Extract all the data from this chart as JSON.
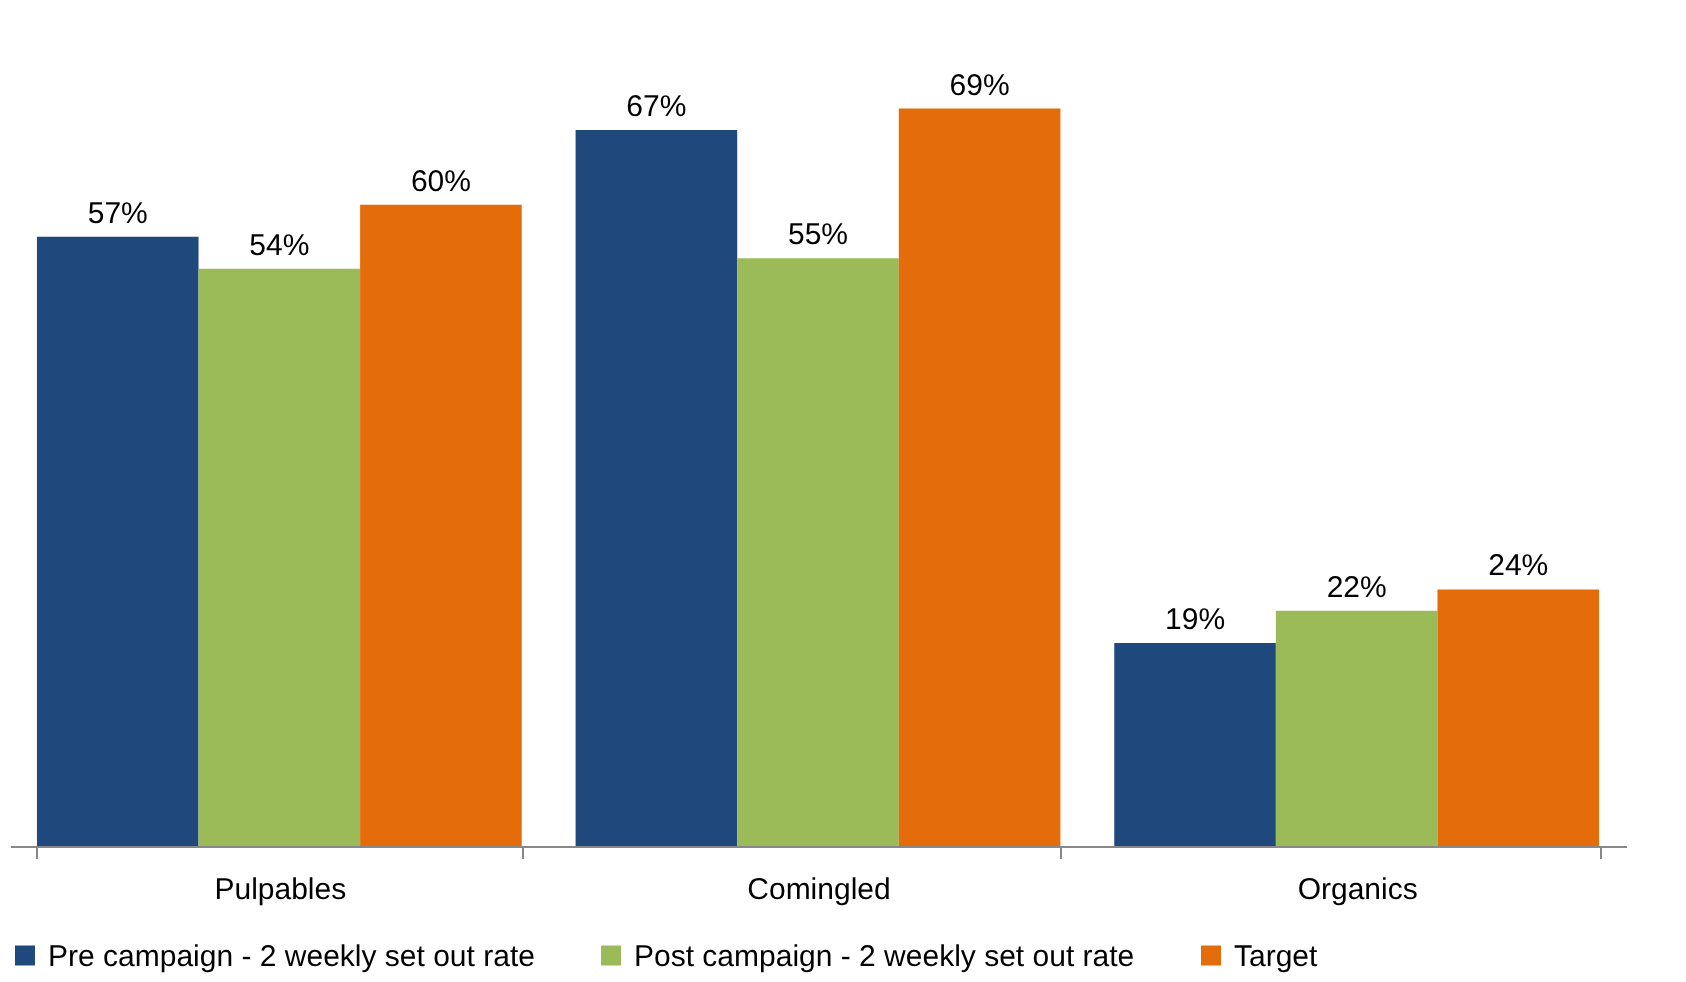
{
  "chart_data": {
    "type": "bar",
    "categories": [
      "Pulpables",
      "Comingled",
      "Organics"
    ],
    "series": [
      {
        "name": "Pre campaign - 2 weekly set out rate",
        "color": "#1f497d",
        "values": [
          57,
          67,
          19
        ],
        "value_labels": [
          "57%",
          "67%",
          "19%"
        ]
      },
      {
        "name": "Post campaign - 2 weekly set out rate",
        "color": "#9bbb59",
        "values": [
          54,
          55,
          22
        ],
        "value_labels": [
          "54%",
          "55%",
          "22%"
        ]
      },
      {
        "name": "Target",
        "color": "#e46c0a",
        "values": [
          60,
          69,
          24
        ],
        "value_labels": [
          "60%",
          "69%",
          "24%"
        ]
      }
    ],
    "tick_labels": "x",
    "grid": false,
    "legend": "bottom"
  }
}
